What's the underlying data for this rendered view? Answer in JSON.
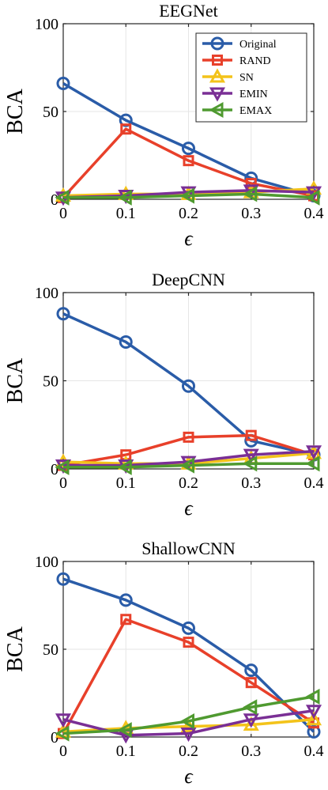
{
  "chart_data": [
    {
      "type": "line",
      "title": "EEGNet",
      "xlabel": "ϵ",
      "ylabel": "BCA",
      "x": [
        0,
        0.1,
        0.2,
        0.3,
        0.4
      ],
      "xticks": [
        "0",
        "0.1",
        "0.2",
        "0.3",
        "0.4"
      ],
      "yticks": [
        "0",
        "50",
        "100"
      ],
      "xlim": [
        0,
        0.4
      ],
      "ylim": [
        0,
        100
      ],
      "grid": true,
      "legend": "top-right",
      "series": [
        {
          "name": "Original",
          "values": [
            66,
            45,
            29,
            12,
            2
          ],
          "color": "#2a5ca8",
          "marker": "circle"
        },
        {
          "name": "RAND",
          "values": [
            1,
            40,
            22,
            9,
            2
          ],
          "color": "#e8402a",
          "marker": "square"
        },
        {
          "name": "SN",
          "values": [
            2,
            3,
            3,
            4,
            6
          ],
          "color": "#f3c31a",
          "marker": "triangle-up"
        },
        {
          "name": "EMIN",
          "values": [
            1,
            2,
            4,
            5,
            4
          ],
          "color": "#7a2f95",
          "marker": "triangle-down"
        },
        {
          "name": "EMAX",
          "values": [
            1,
            1,
            2,
            3,
            1
          ],
          "color": "#4f9a30",
          "marker": "triangle-left"
        }
      ]
    },
    {
      "type": "line",
      "title": "DeepCNN",
      "xlabel": "ϵ",
      "ylabel": "BCA",
      "x": [
        0,
        0.1,
        0.2,
        0.3,
        0.4
      ],
      "xticks": [
        "0",
        "0.1",
        "0.2",
        "0.3",
        "0.4"
      ],
      "yticks": [
        "0",
        "50",
        "100"
      ],
      "xlim": [
        0,
        0.4
      ],
      "ylim": [
        0,
        100
      ],
      "grid": true,
      "legend": "none",
      "series": [
        {
          "name": "Original",
          "values": [
            88,
            72,
            47,
            16,
            8
          ],
          "color": "#2a5ca8",
          "marker": "circle"
        },
        {
          "name": "RAND",
          "values": [
            2,
            8,
            18,
            19,
            8
          ],
          "color": "#e8402a",
          "marker": "square"
        },
        {
          "name": "SN",
          "values": [
            4,
            3,
            3,
            6,
            9
          ],
          "color": "#f3c31a",
          "marker": "triangle-up"
        },
        {
          "name": "EMIN",
          "values": [
            2,
            2,
            4,
            8,
            10
          ],
          "color": "#7a2f95",
          "marker": "triangle-down"
        },
        {
          "name": "EMAX",
          "values": [
            1,
            1,
            2,
            3,
            3
          ],
          "color": "#4f9a30",
          "marker": "triangle-left"
        }
      ]
    },
    {
      "type": "line",
      "title": "ShallowCNN",
      "xlabel": "ϵ",
      "ylabel": "BCA",
      "x": [
        0,
        0.1,
        0.2,
        0.3,
        0.4
      ],
      "xticks": [
        "0",
        "0.1",
        "0.2",
        "0.3",
        "0.4"
      ],
      "yticks": [
        "0",
        "50",
        "100"
      ],
      "xlim": [
        0,
        0.4
      ],
      "ylim": [
        0,
        100
      ],
      "grid": true,
      "legend": "none",
      "series": [
        {
          "name": "Original",
          "values": [
            90,
            78,
            62,
            38,
            3
          ],
          "color": "#2a5ca8",
          "marker": "circle"
        },
        {
          "name": "RAND",
          "values": [
            2,
            67,
            54,
            31,
            8
          ],
          "color": "#e8402a",
          "marker": "square"
        },
        {
          "name": "SN",
          "values": [
            3,
            5,
            6,
            7,
            10
          ],
          "color": "#f3c31a",
          "marker": "triangle-up"
        },
        {
          "name": "EMIN",
          "values": [
            10,
            1,
            2,
            10,
            15
          ],
          "color": "#7a2f95",
          "marker": "triangle-down"
        },
        {
          "name": "EMAX",
          "values": [
            2,
            4,
            9,
            17,
            23
          ],
          "color": "#4f9a30",
          "marker": "triangle-left"
        }
      ]
    }
  ]
}
